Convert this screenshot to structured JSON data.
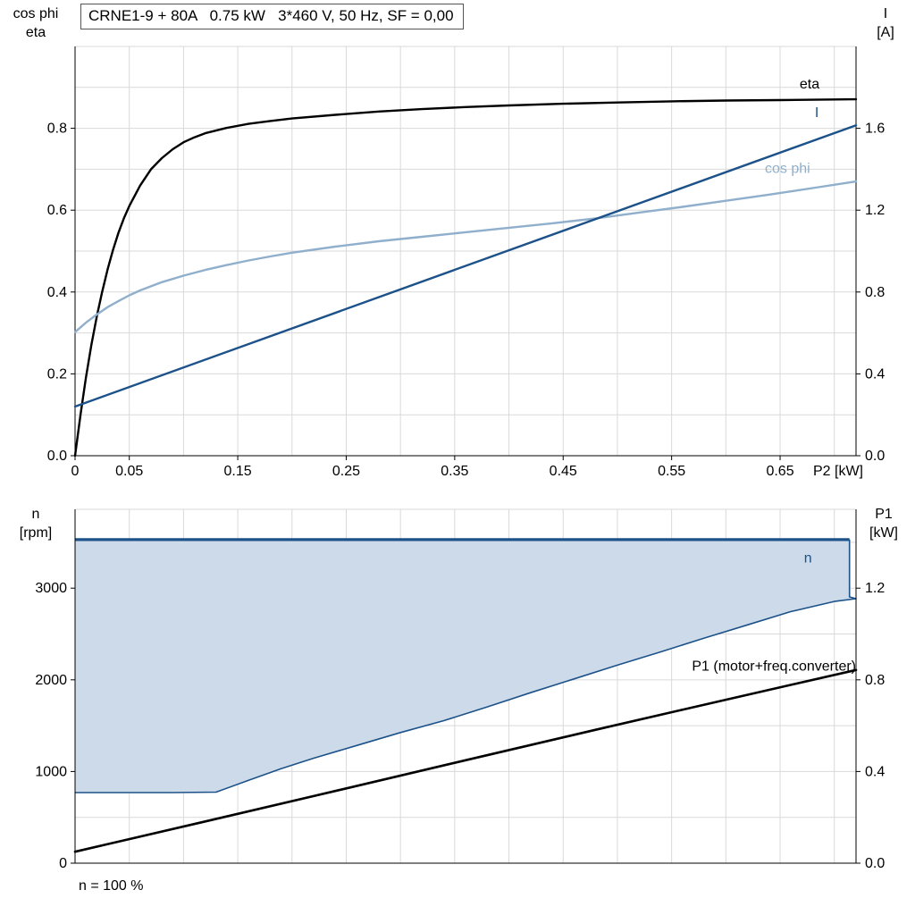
{
  "header": {
    "title": "CRNE1-9 + 80A   0.75 kW   3*460 V, 50 Hz, SF = 0,00"
  },
  "axis_corner_labels": {
    "top_left": [
      "cos phi",
      "eta"
    ],
    "top_right": [
      "I",
      "[A]"
    ],
    "bottom_left": [
      "n",
      "[rpm]"
    ],
    "bottom_right": [
      "P1",
      "[kW]"
    ]
  },
  "footer": {
    "note": "n = 100 %"
  },
  "colors": {
    "dark_blue": "#1c5289",
    "light_blue": "#8fafcc",
    "black": "#000000",
    "grid": "#d9d9d9",
    "area_fill": "#ccdae9"
  },
  "chart_data": [
    {
      "type": "line",
      "title": "CRNE1-9 + 80A   0.75 kW   3*460 V, 50 Hz, SF = 0,00",
      "x_axis": {
        "label": "P2 [kW]",
        "min": 0,
        "max": 0.72,
        "grid_step": 0.05,
        "ticks": [
          {
            "v": 0,
            "t": "0"
          },
          {
            "v": 0.05,
            "t": "0.05"
          },
          {
            "v": 0.15,
            "t": "0.15"
          },
          {
            "v": 0.25,
            "t": "0.25"
          },
          {
            "v": 0.35,
            "t": "0.35"
          },
          {
            "v": 0.45,
            "t": "0.45"
          },
          {
            "v": 0.55,
            "t": "0.55"
          },
          {
            "v": 0.65,
            "t": "0.65"
          }
        ]
      },
      "y_left": {
        "label": "cos phi / eta",
        "min": 0,
        "max": 1.0,
        "grid_step": 0.1,
        "ticks": [
          {
            "v": 0,
            "t": "0.0"
          },
          {
            "v": 0.2,
            "t": "0.2"
          },
          {
            "v": 0.4,
            "t": "0.4"
          },
          {
            "v": 0.6,
            "t": "0.6"
          },
          {
            "v": 0.8,
            "t": "0.8"
          }
        ]
      },
      "y_right": {
        "label": "I [A]",
        "min": 0,
        "max": 2.0,
        "ticks": [
          {
            "v": 0,
            "t": "0.0"
          },
          {
            "v": 0.4,
            "t": "0.4"
          },
          {
            "v": 0.8,
            "t": "0.8"
          },
          {
            "v": 1.2,
            "t": "1.2"
          },
          {
            "v": 1.6,
            "t": "1.6"
          }
        ]
      },
      "series": [
        {
          "name": "eta",
          "axis": "left",
          "color": "#000000",
          "width": 2.4,
          "points": [
            [
              0,
              0
            ],
            [
              0.005,
              0.1
            ],
            [
              0.01,
              0.19
            ],
            [
              0.015,
              0.27
            ],
            [
              0.02,
              0.34
            ],
            [
              0.025,
              0.4
            ],
            [
              0.03,
              0.455
            ],
            [
              0.035,
              0.503
            ],
            [
              0.04,
              0.545
            ],
            [
              0.045,
              0.58
            ],
            [
              0.05,
              0.61
            ],
            [
              0.06,
              0.66
            ],
            [
              0.07,
              0.7
            ],
            [
              0.08,
              0.727
            ],
            [
              0.09,
              0.749
            ],
            [
              0.1,
              0.766
            ],
            [
              0.11,
              0.778
            ],
            [
              0.12,
              0.788
            ],
            [
              0.14,
              0.801
            ],
            [
              0.16,
              0.811
            ],
            [
              0.18,
              0.818
            ],
            [
              0.2,
              0.824
            ],
            [
              0.24,
              0.833
            ],
            [
              0.28,
              0.841
            ],
            [
              0.32,
              0.847
            ],
            [
              0.36,
              0.852
            ],
            [
              0.4,
              0.856
            ],
            [
              0.45,
              0.86
            ],
            [
              0.5,
              0.863
            ],
            [
              0.55,
              0.866
            ],
            [
              0.6,
              0.868
            ],
            [
              0.65,
              0.869
            ],
            [
              0.72,
              0.871
            ]
          ]
        },
        {
          "name": "cos phi",
          "axis": "left",
          "color": "#8fafcc",
          "width": 2.4,
          "points": [
            [
              0,
              0.302
            ],
            [
              0.01,
              0.325
            ],
            [
              0.02,
              0.345
            ],
            [
              0.03,
              0.363
            ],
            [
              0.04,
              0.378
            ],
            [
              0.05,
              0.392
            ],
            [
              0.06,
              0.404
            ],
            [
              0.08,
              0.424
            ],
            [
              0.1,
              0.44
            ],
            [
              0.12,
              0.454
            ],
            [
              0.14,
              0.466
            ],
            [
              0.16,
              0.477
            ],
            [
              0.18,
              0.487
            ],
            [
              0.2,
              0.496
            ],
            [
              0.24,
              0.511
            ],
            [
              0.28,
              0.524
            ],
            [
              0.32,
              0.535
            ],
            [
              0.36,
              0.546
            ],
            [
              0.4,
              0.557
            ],
            [
              0.44,
              0.568
            ],
            [
              0.48,
              0.58
            ],
            [
              0.52,
              0.594
            ],
            [
              0.56,
              0.608
            ],
            [
              0.6,
              0.623
            ],
            [
              0.64,
              0.638
            ],
            [
              0.68,
              0.654
            ],
            [
              0.72,
              0.67
            ]
          ]
        },
        {
          "name": "I",
          "axis": "right",
          "color": "#1c5289",
          "width": 2.4,
          "points": [
            [
              0,
              0.24
            ],
            [
              0.72,
              1.615
            ]
          ]
        }
      ],
      "annotations": [
        {
          "text": "eta",
          "x": 0.668,
          "y": 0.908,
          "color": "#000000",
          "anchor": "start"
        },
        {
          "text": "I",
          "x": 0.682,
          "y": 0.838,
          "color": "#1c5289",
          "anchor": "start"
        },
        {
          "text": "cos phi",
          "x": 0.636,
          "y": 0.702,
          "color": "#8fafcc",
          "anchor": "start"
        }
      ]
    },
    {
      "type": "line+area",
      "title": "",
      "x_axis": {
        "label": "",
        "min": 0,
        "max": 0.72,
        "grid_step": 0.05,
        "ticks": []
      },
      "y_left": {
        "label": "n [rpm]",
        "min": 0,
        "max": 3860,
        "grid_step": 500,
        "ticks": [
          {
            "v": 0,
            "t": "0"
          },
          {
            "v": 1000,
            "t": "1000"
          },
          {
            "v": 2000,
            "t": "2000"
          },
          {
            "v": 3000,
            "t": "3000"
          }
        ]
      },
      "y_right": {
        "label": "P1 [kW]",
        "min": 0,
        "max": 1.544,
        "ticks": [
          {
            "v": 0,
            "t": "0.0"
          },
          {
            "v": 0.4,
            "t": "0.4"
          },
          {
            "v": 0.8,
            "t": "0.8"
          },
          {
            "v": 1.2,
            "t": "1.2"
          }
        ]
      },
      "area": {
        "name": "n operating range envelope",
        "fill": "#ccdae9",
        "polygon": [
          [
            0,
            3530
          ],
          [
            0.714,
            3530
          ],
          [
            0.714,
            2905
          ],
          [
            0.72,
            2885
          ],
          [
            0.7,
            2855
          ],
          [
            0.66,
            2745
          ],
          [
            0.62,
            2600
          ],
          [
            0.58,
            2455
          ],
          [
            0.54,
            2305
          ],
          [
            0.5,
            2160
          ],
          [
            0.46,
            2010
          ],
          [
            0.42,
            1860
          ],
          [
            0.38,
            1705
          ],
          [
            0.34,
            1555
          ],
          [
            0.3,
            1425
          ],
          [
            0.26,
            1285
          ],
          [
            0.22,
            1145
          ],
          [
            0.19,
            1030
          ],
          [
            0.16,
            905
          ],
          [
            0.13,
            775
          ],
          [
            0.09,
            770
          ],
          [
            0.04,
            770
          ],
          [
            0,
            770
          ]
        ],
        "borders": [
          {
            "points": [
              [
                0,
                3530
              ],
              [
                0.714,
                3530
              ]
            ],
            "color": "#1c5289",
            "width": 3.2
          },
          {
            "points": [
              [
                0.714,
                3530
              ],
              [
                0.714,
                2905
              ],
              [
                0.72,
                2885
              ],
              [
                0.7,
                2855
              ],
              [
                0.66,
                2745
              ],
              [
                0.62,
                2600
              ],
              [
                0.58,
                2455
              ],
              [
                0.54,
                2305
              ],
              [
                0.5,
                2160
              ],
              [
                0.46,
                2010
              ],
              [
                0.42,
                1860
              ],
              [
                0.38,
                1705
              ],
              [
                0.34,
                1555
              ],
              [
                0.3,
                1425
              ],
              [
                0.26,
                1285
              ],
              [
                0.22,
                1145
              ],
              [
                0.19,
                1030
              ],
              [
                0.16,
                905
              ],
              [
                0.13,
                775
              ],
              [
                0.09,
                770
              ],
              [
                0.04,
                770
              ],
              [
                0,
                770
              ]
            ],
            "color": "#1c5289",
            "width": 1.6
          }
        ]
      },
      "series": [
        {
          "name": "P1 (motor+freq.converter)",
          "axis": "right",
          "color": "#000000",
          "width": 2.6,
          "points": [
            [
              0,
              0.05
            ],
            [
              0.12,
              0.182
            ],
            [
              0.24,
              0.315
            ],
            [
              0.36,
              0.449
            ],
            [
              0.48,
              0.582
            ],
            [
              0.6,
              0.713
            ],
            [
              0.72,
              0.843
            ]
          ]
        }
      ],
      "annotations": [
        {
          "text": "n",
          "x": 0.672,
          "y": 3330,
          "color": "#1c5289",
          "anchor": "start"
        },
        {
          "text": "P1 (motor+freq.converter)",
          "x": 0.72,
          "y": 2150,
          "color": "#000000",
          "anchor": "end"
        }
      ]
    }
  ]
}
